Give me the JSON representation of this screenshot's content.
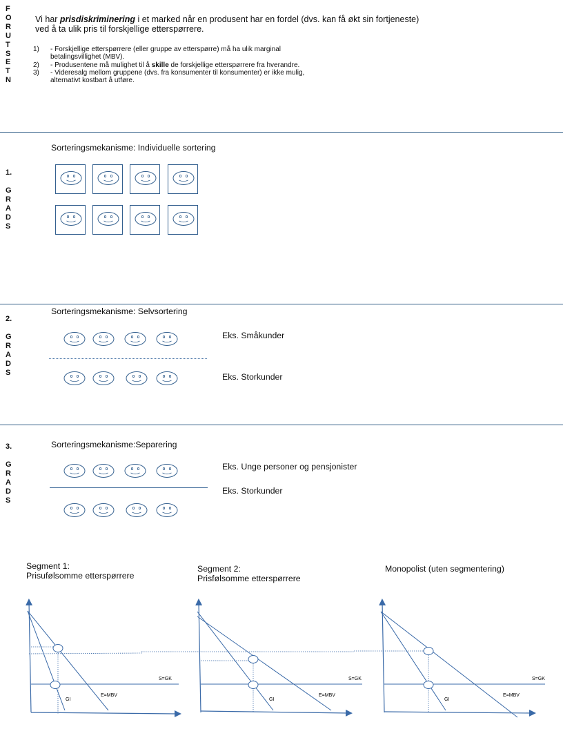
{
  "labels": {
    "forutsetn": [
      "F",
      "O",
      "R",
      "U",
      "T",
      "S",
      "E",
      "T",
      "N"
    ],
    "grad1_num": "1.",
    "grad2_num": "2.",
    "grad3_num": "3.",
    "grads": [
      "G",
      "R",
      "A",
      "D",
      "S"
    ]
  },
  "intro": {
    "pre": "Vi har ",
    "term": "prisdiskriminering",
    "post": " i et marked når en produsent har en fordel (dvs. kan få økt sin fortjeneste)",
    "line2": "ved å ta ulik pris til forskjellige etterspørrere."
  },
  "conditions": [
    {
      "num": "1)",
      "text": "-   Forskjellige etterspørrere (eller gruppe av etterspørre) må ha ulik marginal",
      "cont": "betalingsvillighet (MBV)."
    },
    {
      "num": "2)",
      "text_pre": "-   Produsentene må mulighet til å ",
      "bold": "skille",
      "text_post": " de forskjellige etterspørrere fra hverandre."
    },
    {
      "num": "3)",
      "text": "-   Videresalg mellom gruppene (dvs. fra konsumenter til konsumenter) er ikke mulig,",
      "cont": "alternativt kostbart å utføre."
    }
  ],
  "sections": {
    "first": {
      "title": "Sorteringsmekanisme: Individuelle sortering"
    },
    "second": {
      "title": "Sorteringsmekanisme: Selvsortering",
      "eks_top": "Eks. Småkunder",
      "eks_bottom": "Eks. Storkunder"
    },
    "third": {
      "title": "Sorteringsmekanisme:Separering",
      "eks_top": "Eks. Unge personer og pensjonister",
      "eks_bottom": "Eks. Storkunder"
    }
  },
  "segments": {
    "seg1_line1": "Segment 1:",
    "seg1_line2": "Prisufølsomme etterspørrere",
    "seg2_line1": "Segment 2:",
    "seg2_line2": "Prisfølsomme etterspørrere",
    "seg3_line1": "Monopolist (uten segmentering)"
  },
  "graph_labels": {
    "sgk": "S=GK",
    "gi": "GI",
    "embv": "E=MBV"
  },
  "colors": {
    "accent": "#2f5d86",
    "axis": "#3a6aa8"
  }
}
